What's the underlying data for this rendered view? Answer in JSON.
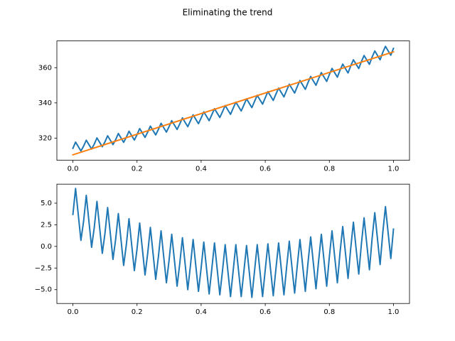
{
  "title": "Eliminating the trend",
  "chart_data": [
    {
      "type": "line",
      "xlim": [
        -0.05,
        1.05
      ],
      "xticks": [
        {
          "value": 0,
          "label": "0.0"
        },
        0.2,
        0.4,
        0.6,
        0.8,
        {
          "value": 1,
          "label": "1.0"
        }
      ],
      "ylim": [
        307.4,
        375.2
      ],
      "yticks": [
        320,
        340,
        360
      ],
      "series": [
        {
          "color": "#1f77b4",
          "x": [
            0,
            0.0083,
            0.0167,
            0.025,
            0.0333,
            0.0417,
            0.05,
            0.0583,
            0.0667,
            0.075,
            0.0833,
            0.0917,
            0.1,
            0.1083,
            0.1167,
            0.125,
            0.1333,
            0.1417,
            0.15,
            0.1583,
            0.1667,
            0.175,
            0.1833,
            0.1917,
            0.2,
            0.2083,
            0.2167,
            0.225,
            0.2333,
            0.2417,
            0.25,
            0.2583,
            0.2667,
            0.275,
            0.2833,
            0.2917,
            0.3,
            0.3083,
            0.3167,
            0.325,
            0.3333,
            0.3417,
            0.35,
            0.3583,
            0.3667,
            0.375,
            0.3833,
            0.3917,
            0.4,
            0.4083,
            0.4167,
            0.425,
            0.4333,
            0.4417,
            0.45,
            0.4583,
            0.4667,
            0.475,
            0.4833,
            0.4917,
            0.5,
            0.5083,
            0.5167,
            0.525,
            0.5333,
            0.5417,
            0.55,
            0.5583,
            0.5667,
            0.575,
            0.5833,
            0.5917,
            0.6,
            0.6083,
            0.6167,
            0.625,
            0.6333,
            0.6417,
            0.65,
            0.6583,
            0.6667,
            0.675,
            0.6833,
            0.6917,
            0.7,
            0.7083,
            0.7167,
            0.725,
            0.7333,
            0.7417,
            0.75,
            0.7583,
            0.7667,
            0.775,
            0.7833,
            0.7917,
            0.8,
            0.8083,
            0.8167,
            0.825,
            0.8333,
            0.8417,
            0.85,
            0.8583,
            0.8667,
            0.875,
            0.8833,
            0.8917,
            0.9,
            0.9083,
            0.9167,
            0.925,
            0.9333,
            0.9417,
            0.95,
            0.9583,
            0.9667,
            0.975,
            0.9833,
            0.9917,
            1
          ],
          "values": [
            314.2,
            317.7,
            315.2,
            312.7,
            315.4,
            318.8,
            316.3,
            313.8,
            316.6,
            320.1,
            317.6,
            315.1,
            317.9,
            321.3,
            318.8,
            316.3,
            319.1,
            322.6,
            320.1,
            317.6,
            320.5,
            323.9,
            321.4,
            318.9,
            321.9,
            325.4,
            322.9,
            320.4,
            323.4,
            326.8,
            324.3,
            321.8,
            324.9,
            328.4,
            325.9,
            323.4,
            326.5,
            329.9,
            327.4,
            324.9,
            328.0,
            331.5,
            329.0,
            326.5,
            329.8,
            333.2,
            330.7,
            328.2,
            331.4,
            334.9,
            332.4,
            329.9,
            333.3,
            336.7,
            334.2,
            331.7,
            335.0,
            338.5,
            336.0,
            333.5,
            337.0,
            340.4,
            337.9,
            335.4,
            338.8,
            342.3,
            339.8,
            337.3,
            340.9,
            344.3,
            341.8,
            339.3,
            342.9,
            346.4,
            343.9,
            341.4,
            345.0,
            348.4,
            345.9,
            343.4,
            347.1,
            350.6,
            348.1,
            345.6,
            349.3,
            352.7,
            350.2,
            347.7,
            351.5,
            355.0,
            352.5,
            350.0,
            353.8,
            357.2,
            354.7,
            352.2,
            356.1,
            359.6,
            357.1,
            354.6,
            358.6,
            362.0,
            359.5,
            357.0,
            361.0,
            364.5,
            362.0,
            359.5,
            363.5,
            366.9,
            364.4,
            361.9,
            366.0,
            369.5,
            367.0,
            364.5,
            368.7,
            372.1,
            369.6,
            367.1,
            371.0
          ]
        },
        {
          "color": "#ff7f0e",
          "x": [
            0,
            1
          ],
          "values": [
            310.5,
            369.0
          ]
        }
      ]
    },
    {
      "type": "line",
      "xlim": [
        -0.05,
        1.05
      ],
      "xticks": [
        {
          "value": 0,
          "label": "0.0"
        },
        0.2,
        0.4,
        0.6,
        0.8,
        {
          "value": 1,
          "label": "1.0"
        }
      ],
      "ylim": [
        -6.6,
        7.2
      ],
      "yticks": [
        {
          "value": -5,
          "label": "−5.0"
        },
        {
          "value": -2.5,
          "label": "−2.5"
        },
        {
          "value": 0,
          "label": "0.0"
        },
        2.5,
        {
          "value": 5,
          "label": "5.0"
        }
      ],
      "series": [
        {
          "color": "#1f77b4",
          "x": [
            0,
            0.0083,
            0.0167,
            0.025,
            0.0333,
            0.0417,
            0.05,
            0.0583,
            0.0667,
            0.075,
            0.0833,
            0.0917,
            0.1,
            0.1083,
            0.1167,
            0.125,
            0.1333,
            0.1417,
            0.15,
            0.1583,
            0.1667,
            0.175,
            0.1833,
            0.1917,
            0.2,
            0.2083,
            0.2167,
            0.225,
            0.2333,
            0.2417,
            0.25,
            0.2583,
            0.2667,
            0.275,
            0.2833,
            0.2917,
            0.3,
            0.3083,
            0.3167,
            0.325,
            0.3333,
            0.3417,
            0.35,
            0.3583,
            0.3667,
            0.375,
            0.3833,
            0.3917,
            0.4,
            0.4083,
            0.4167,
            0.425,
            0.4333,
            0.4417,
            0.45,
            0.4583,
            0.4667,
            0.475,
            0.4833,
            0.4917,
            0.5,
            0.5083,
            0.5167,
            0.525,
            0.5333,
            0.5417,
            0.55,
            0.5583,
            0.5667,
            0.575,
            0.5833,
            0.5917,
            0.6,
            0.6083,
            0.6167,
            0.625,
            0.6333,
            0.6417,
            0.65,
            0.6583,
            0.6667,
            0.675,
            0.6833,
            0.6917,
            0.7,
            0.7083,
            0.7167,
            0.725,
            0.7333,
            0.7417,
            0.75,
            0.7583,
            0.7667,
            0.775,
            0.7833,
            0.7917,
            0.8,
            0.8083,
            0.8167,
            0.825,
            0.8333,
            0.8417,
            0.85,
            0.8583,
            0.8667,
            0.875,
            0.8833,
            0.8917,
            0.9,
            0.9083,
            0.9167,
            0.925,
            0.9333,
            0.9417,
            0.95,
            0.9583,
            0.9667,
            0.975,
            0.9833,
            0.9917,
            1
          ],
          "values": [
            3.7,
            6.7,
            3.7,
            0.7,
            2.9,
            5.9,
            2.9,
            -0.1,
            2.2,
            5.2,
            2.2,
            -0.8,
            1.5,
            4.5,
            1.5,
            -1.5,
            0.8,
            3.8,
            0.8,
            -2.2,
            0.2,
            3.2,
            0.2,
            -2.8,
            -0.3,
            2.7,
            -0.3,
            -3.3,
            -0.8,
            2.2,
            -0.8,
            -3.8,
            -1.2,
            1.8,
            -1.2,
            -4.2,
            -1.6,
            1.4,
            -1.6,
            -4.6,
            -2.0,
            1.0,
            -2.0,
            -5.0,
            -2.2,
            0.8,
            -2.2,
            -5.2,
            -2.5,
            0.5,
            -2.5,
            -5.5,
            -2.6,
            0.4,
            -2.6,
            -5.6,
            -2.8,
            0.2,
            -2.8,
            -5.8,
            -2.8,
            0.2,
            -2.8,
            -5.8,
            -2.9,
            0.1,
            -2.9,
            -5.9,
            -2.8,
            0.2,
            -2.8,
            -5.8,
            -2.7,
            0.3,
            -2.7,
            -5.7,
            -2.6,
            0.4,
            -2.6,
            -5.6,
            -2.4,
            0.6,
            -2.4,
            -5.4,
            -2.2,
            0.8,
            -2.2,
            -5.2,
            -1.9,
            1.1,
            -1.9,
            -4.9,
            -1.6,
            1.4,
            -1.6,
            -4.6,
            -1.2,
            1.8,
            -1.2,
            -4.2,
            -0.7,
            2.3,
            -0.7,
            -3.7,
            -0.2,
            2.8,
            -0.2,
            -3.2,
            0.3,
            3.3,
            0.3,
            -2.7,
            0.9,
            3.9,
            0.9,
            -2.1,
            1.6,
            4.6,
            1.6,
            -1.4,
            2.0
          ]
        }
      ]
    }
  ]
}
